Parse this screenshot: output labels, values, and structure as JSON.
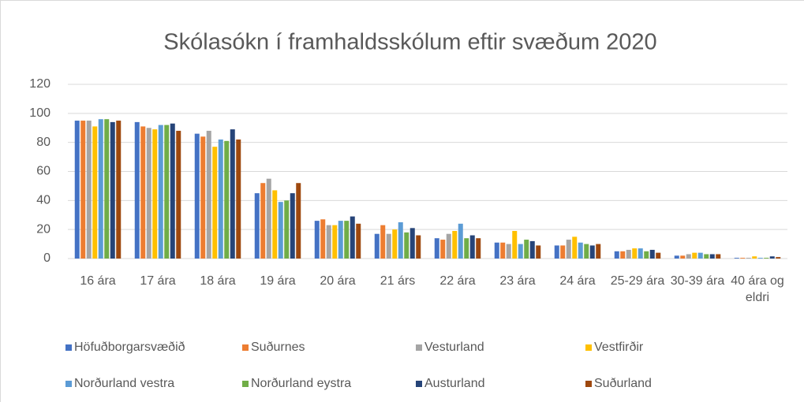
{
  "chart_data": {
    "type": "bar",
    "title": "Skólasókn í framhaldsskólum eftir svæðum 2020",
    "categories": [
      "16 ára",
      "17 ára",
      "18 ára",
      "19 ára",
      "20 ára",
      "21 árs",
      "22 ára",
      "23 ára",
      "24 ára",
      "25-29 ára",
      "30-39 ára",
      "40 ára og eldri"
    ],
    "series": [
      {
        "name": "Höfuðborgarsvæðið",
        "color": "#4472c4",
        "values": [
          95,
          94,
          86,
          45,
          26,
          17,
          14,
          11,
          9,
          5,
          2,
          0.5
        ]
      },
      {
        "name": "Suðurnes",
        "color": "#ed7d31",
        "values": [
          95,
          91,
          84,
          52,
          27,
          23,
          13,
          11,
          9,
          5,
          2,
          0.5
        ]
      },
      {
        "name": "Vesturland",
        "color": "#a5a5a5",
        "values": [
          95,
          90,
          88,
          55,
          23,
          17,
          17,
          10,
          13,
          6,
          3,
          0.5
        ]
      },
      {
        "name": "Vestfirðir",
        "color": "#ffc000",
        "values": [
          91,
          89,
          77,
          47,
          23,
          20,
          19,
          19,
          15,
          7,
          4,
          1.5
        ]
      },
      {
        "name": "Norðurland vestra",
        "color": "#5b9bd5",
        "values": [
          96,
          92,
          82,
          39,
          26,
          25,
          24,
          10,
          11,
          7,
          4,
          0.5
        ]
      },
      {
        "name": "Norðurland eystra",
        "color": "#70ad47",
        "values": [
          96,
          92,
          81,
          40,
          26,
          18,
          14,
          13,
          10,
          5,
          3,
          0.5
        ]
      },
      {
        "name": "Austurland",
        "color": "#264478",
        "values": [
          94,
          93,
          89,
          45,
          29,
          21,
          16,
          12,
          9,
          6,
          3,
          1.5
        ]
      },
      {
        "name": "Suðurland",
        "color": "#9e480e",
        "values": [
          95,
          88,
          82,
          52,
          24,
          16,
          14,
          9,
          10,
          4,
          3,
          1
        ]
      }
    ],
    "ylim": [
      0,
      120
    ],
    "yticks": [
      0,
      20,
      40,
      60,
      80,
      100,
      120
    ],
    "grid": true,
    "legend": "bottom"
  }
}
